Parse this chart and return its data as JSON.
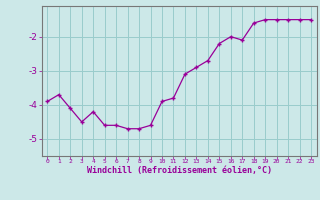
{
  "x": [
    0,
    1,
    2,
    3,
    4,
    5,
    6,
    7,
    8,
    9,
    10,
    11,
    12,
    13,
    14,
    15,
    16,
    17,
    18,
    19,
    20,
    21,
    22,
    23
  ],
  "y": [
    -3.9,
    -3.7,
    -4.1,
    -4.5,
    -4.2,
    -4.6,
    -4.6,
    -4.7,
    -4.7,
    -4.6,
    -3.9,
    -3.8,
    -3.1,
    -2.9,
    -2.7,
    -2.2,
    -2.0,
    -2.1,
    -1.6,
    -1.5,
    -1.5,
    -1.5,
    -1.5,
    -1.5
  ],
  "line_color": "#990099",
  "marker": "+",
  "bg_color": "#cce8e8",
  "grid_color": "#99cccc",
  "ylabel_ticks": [
    -5,
    -4,
    -3,
    -2
  ],
  "ylim": [
    -5.5,
    -1.1
  ],
  "xlim": [
    -0.5,
    23.5
  ],
  "xlabel": "Windchill (Refroidissement éolien,°C)",
  "xlabel_color": "#990099",
  "tick_color": "#990099",
  "axis_color": "#888888",
  "spine_color": "#777777"
}
